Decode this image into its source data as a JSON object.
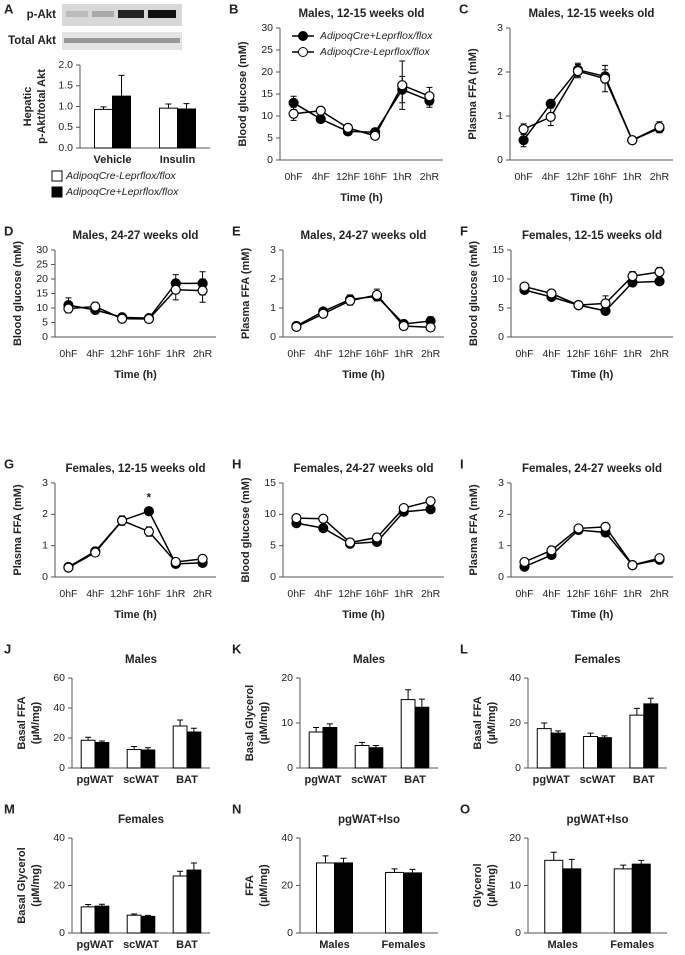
{
  "chart_data": [
    {
      "type": "bar",
      "panel": "A",
      "blot_labels": [
        "p-Akt",
        "Total Akt"
      ],
      "ylabel": [
        "Hepatic",
        "p-Akt/total Akt"
      ],
      "categories": [
        "Vehicle",
        "Insulin"
      ],
      "series": [
        {
          "name": "AdipoqCre-Leprflox/flox",
          "color": "#ffffff",
          "values": [
            0.93,
            0.96
          ],
          "errors": [
            0.06,
            0.1
          ]
        },
        {
          "name": "AdipoqCre+Leprflox/flox",
          "color": "#000000",
          "values": [
            1.25,
            0.94
          ],
          "errors": [
            0.5,
            0.13
          ]
        }
      ],
      "ylim": [
        0,
        2
      ],
      "yticks": [
        {
          "value": 0,
          "label": "0.0"
        },
        0.5,
        {
          "value": 1,
          "label": "1.0"
        },
        1.5,
        {
          "value": 2,
          "label": "2.0"
        }
      ]
    },
    {
      "type": "line",
      "panel": "B",
      "title": "Males, 12-15 weeks old",
      "xlabel": "Time (h)",
      "ylabel": [
        "Blood glucose (mM)"
      ],
      "categories": [
        "0hF",
        "4hF",
        "12hF",
        "16hF",
        "1hR",
        "2hR"
      ],
      "series": [
        {
          "name": "AdipoqCre+Leprflox/flox",
          "color": "#000000",
          "values": [
            13,
            9.3,
            6.5,
            6.3,
            16,
            13.5
          ],
          "errors": [
            1.5,
            0.8,
            0.8,
            0.8,
            3,
            1.5
          ]
        },
        {
          "name": "AdipoqCre-Leprflox/flox",
          "color": "#ffffff",
          "values": [
            10.5,
            11.2,
            7.3,
            5.5,
            17,
            14.5
          ],
          "errors": [
            1.5,
            0.5,
            0.5,
            0.8,
            5.5,
            2
          ]
        }
      ],
      "ylim": [
        0,
        30
      ],
      "yticks": [
        0,
        5,
        10,
        15,
        20,
        25,
        30
      ]
    },
    {
      "type": "line",
      "panel": "C",
      "title": "Males, 12-15 weeks old",
      "xlabel": "Time (h)",
      "ylabel": [
        "Plasma FFA (mM)"
      ],
      "categories": [
        "0hF",
        "4hF",
        "12hF",
        "16hF",
        "1hR",
        "2hR"
      ],
      "series": [
        {
          "color": "#000000",
          "values": [
            0.45,
            1.28,
            2.05,
            1.9,
            0.45,
            0.72
          ],
          "errors": [
            0.15,
            0.07,
            0.15,
            0.15,
            0.05,
            0.1
          ]
        },
        {
          "color": "#ffffff",
          "values": [
            0.7,
            0.98,
            2.02,
            1.85,
            0.45,
            0.75
          ],
          "errors": [
            0.12,
            0.2,
            0.15,
            0.3,
            0.05,
            0.12
          ]
        }
      ],
      "ylim": [
        0,
        3
      ],
      "yticks": [
        0,
        1,
        2,
        3
      ]
    },
    {
      "type": "line",
      "panel": "D",
      "title": "Males, 24-27 weeks old",
      "xlabel": "Time (h)",
      "ylabel": [
        "Blood glucose (mM)"
      ],
      "categories": [
        "0hF",
        "4hF",
        "12hF",
        "16hF",
        "1hR",
        "2hR"
      ],
      "series": [
        {
          "color": "#000000",
          "values": [
            11,
            9.3,
            6.8,
            6.5,
            18.5,
            18.5
          ],
          "errors": [
            2.5,
            1.2,
            1,
            0.8,
            3,
            4
          ]
        },
        {
          "color": "#ffffff",
          "values": [
            9.8,
            10.5,
            6.3,
            6.2,
            16.3,
            16
          ],
          "errors": [
            1.5,
            1.5,
            1,
            0.8,
            3.5,
            4
          ]
        }
      ],
      "ylim": [
        0,
        30
      ],
      "yticks": [
        0,
        5,
        10,
        15,
        20,
        25,
        30
      ]
    },
    {
      "type": "line",
      "panel": "E",
      "title": "Males, 24-27 weeks old",
      "xlabel": "Time (h)",
      "ylabel": [
        "Plasma FFA (mM)"
      ],
      "categories": [
        "0hF",
        "4hF",
        "12hF",
        "16hF",
        "1hR",
        "2hR"
      ],
      "series": [
        {
          "color": "#000000",
          "values": [
            0.38,
            0.88,
            1.3,
            1.4,
            0.45,
            0.55
          ],
          "errors": [
            0.05,
            0.08,
            0.15,
            0.15,
            0.1,
            0.15
          ]
        },
        {
          "color": "#ffffff",
          "values": [
            0.35,
            0.8,
            1.25,
            1.45,
            0.38,
            0.33
          ],
          "errors": [
            0.05,
            0.08,
            0.15,
            0.2,
            0.1,
            0.1
          ]
        }
      ],
      "ylim": [
        0,
        3
      ],
      "yticks": [
        0,
        1,
        2,
        3
      ]
    },
    {
      "type": "line",
      "panel": "F",
      "title": "Females, 12-15 weeks old",
      "xlabel": "Time (h)",
      "ylabel": [
        "Blood glucose (mM)"
      ],
      "categories": [
        "0hF",
        "4hF",
        "12hF",
        "16hF",
        "1hR",
        "2hR"
      ],
      "series": [
        {
          "color": "#000000",
          "values": [
            8.1,
            6.9,
            5.5,
            4.5,
            9.4,
            9.6
          ],
          "errors": [
            0.4,
            0.4,
            0.4,
            0.6,
            0.4,
            0.4
          ]
        },
        {
          "color": "#ffffff",
          "values": [
            8.7,
            7.5,
            5.5,
            5.8,
            10.5,
            11.2
          ],
          "errors": [
            0.4,
            0.5,
            0.4,
            1.3,
            0.8,
            0.8
          ]
        }
      ],
      "ylim": [
        0,
        15
      ],
      "yticks": [
        0,
        5,
        10,
        15
      ]
    },
    {
      "type": "line",
      "panel": "G",
      "title": "Females, 12-15 weeks old",
      "xlabel": "Time (h)",
      "ylabel": [
        "Plasma FFA (mM)"
      ],
      "categories": [
        "0hF",
        "4hF",
        "12hF",
        "16hF",
        "1hR",
        "2hR"
      ],
      "series": [
        {
          "color": "#000000",
          "values": [
            0.32,
            0.82,
            1.8,
            2.1,
            0.42,
            0.45
          ],
          "errors": [
            0.05,
            0.05,
            0.15,
            0.12,
            0.05,
            0.05
          ]
        },
        {
          "color": "#ffffff",
          "values": [
            0.3,
            0.78,
            1.8,
            1.45,
            0.48,
            0.58
          ],
          "errors": [
            0.05,
            0.05,
            0.1,
            0.15,
            0.05,
            0.1
          ]
        }
      ],
      "annotation": "*",
      "annotation_x": "16hF",
      "ylim": [
        0,
        3
      ],
      "yticks": [
        0,
        1,
        2,
        3
      ]
    },
    {
      "type": "line",
      "panel": "H",
      "title": "Females, 24-27 weeks old",
      "xlabel": "Time (h)",
      "ylabel": [
        "Blood glucose (mM)"
      ],
      "categories": [
        "0hF",
        "4hF",
        "12hF",
        "16hF",
        "1hR",
        "2hR"
      ],
      "series": [
        {
          "color": "#000000",
          "values": [
            8.6,
            7.8,
            5.3,
            5.6,
            10.4,
            10.8
          ],
          "errors": [
            0.4,
            0.4,
            0.3,
            0.4,
            0.3,
            0.5
          ]
        },
        {
          "color": "#ffffff",
          "values": [
            9.4,
            9.3,
            5.5,
            6.3,
            11,
            12.1
          ],
          "errors": [
            0.4,
            0.3,
            0.3,
            0.6,
            0.4,
            0.3
          ]
        }
      ],
      "ylim": [
        0,
        15
      ],
      "yticks": [
        0,
        5,
        10,
        15
      ]
    },
    {
      "type": "line",
      "panel": "I",
      "title": "Females, 24-27 weeks old",
      "xlabel": "Time (h)",
      "ylabel": [
        "Plasma FFA (mM)"
      ],
      "categories": [
        "0hF",
        "4hF",
        "12hF",
        "16hF",
        "1hR",
        "2hR"
      ],
      "series": [
        {
          "color": "#000000",
          "values": [
            0.33,
            0.7,
            1.5,
            1.42,
            0.38,
            0.55
          ],
          "errors": [
            0.05,
            0.05,
            0.1,
            0.12,
            0.05,
            0.05
          ]
        },
        {
          "color": "#ffffff",
          "values": [
            0.48,
            0.85,
            1.55,
            1.6,
            0.38,
            0.6
          ],
          "errors": [
            0.05,
            0.05,
            0.1,
            0.12,
            0.05,
            0.05
          ]
        }
      ],
      "ylim": [
        0,
        3
      ],
      "yticks": [
        0,
        1,
        2,
        3
      ]
    },
    {
      "type": "bar",
      "panel": "J",
      "title": "Males",
      "ylabel": [
        "Basal FFA",
        "(µM/mg)"
      ],
      "categories": [
        "pgWAT",
        "scWAT",
        "BAT"
      ],
      "series": [
        {
          "color": "#ffffff",
          "values": [
            18.5,
            12.3,
            28
          ],
          "errors": [
            2,
            2,
            4
          ]
        },
        {
          "color": "#000000",
          "values": [
            17,
            12,
            24
          ],
          "errors": [
            1,
            1.5,
            2.5
          ]
        }
      ],
      "ylim": [
        0,
        60
      ],
      "yticks": [
        0,
        20,
        40,
        60
      ]
    },
    {
      "type": "bar",
      "panel": "K",
      "title": "Males",
      "ylabel": [
        "Basal Glycerol",
        "(µM/mg)"
      ],
      "categories": [
        "pgWAT",
        "scWAT",
        "BAT"
      ],
      "series": [
        {
          "color": "#ffffff",
          "values": [
            8,
            5,
            15.2
          ],
          "errors": [
            1,
            0.7,
            2.2
          ]
        },
        {
          "color": "#000000",
          "values": [
            9,
            4.5,
            13.5
          ],
          "errors": [
            0.8,
            0.5,
            1.8
          ]
        }
      ],
      "ylim": [
        0,
        20
      ],
      "yticks": [
        0,
        10,
        20
      ]
    },
    {
      "type": "bar",
      "panel": "L",
      "title": "Females",
      "ylabel": [
        "Basal FFA",
        "(µM/mg)"
      ],
      "categories": [
        "pgWAT",
        "scWAT",
        "BAT"
      ],
      "series": [
        {
          "color": "#ffffff",
          "values": [
            17.5,
            14,
            23.5
          ],
          "errors": [
            2.5,
            1.5,
            3
          ]
        },
        {
          "color": "#000000",
          "values": [
            15.5,
            13.5,
            28.5
          ],
          "errors": [
            1,
            0.8,
            2.5
          ]
        }
      ],
      "ylim": [
        0,
        40
      ],
      "yticks": [
        0,
        20,
        40
      ]
    },
    {
      "type": "bar",
      "panel": "M",
      "title": "Females",
      "ylabel": [
        "Basal Glycerol",
        "(µM/mg)"
      ],
      "categories": [
        "pgWAT",
        "scWAT",
        "BAT"
      ],
      "series": [
        {
          "color": "#ffffff",
          "values": [
            11,
            7.5,
            24
          ],
          "errors": [
            1,
            0.5,
            2
          ]
        },
        {
          "color": "#000000",
          "values": [
            11.3,
            7,
            26.5
          ],
          "errors": [
            0.8,
            0.4,
            3
          ]
        }
      ],
      "ylim": [
        0,
        40
      ],
      "yticks": [
        0,
        20,
        40
      ]
    },
    {
      "type": "bar",
      "panel": "N",
      "title": "pgWAT+Iso",
      "ylabel": [
        "FFA",
        "(µM/mg)"
      ],
      "categories": [
        "Males",
        "Females"
      ],
      "series": [
        {
          "color": "#ffffff",
          "values": [
            29.5,
            25.5
          ],
          "errors": [
            3,
            1.5
          ]
        },
        {
          "color": "#000000",
          "values": [
            29.5,
            25.3
          ],
          "errors": [
            2,
            1.5
          ]
        }
      ],
      "ylim": [
        0,
        40
      ],
      "yticks": [
        0,
        20,
        40
      ]
    },
    {
      "type": "bar",
      "panel": "O",
      "title": "pgWAT+Iso",
      "ylabel": [
        "Glycerol",
        "(µM/mg)"
      ],
      "categories": [
        "Males",
        "Females"
      ],
      "series": [
        {
          "color": "#ffffff",
          "values": [
            15.3,
            13.5
          ],
          "errors": [
            1.7,
            0.8
          ]
        },
        {
          "color": "#000000",
          "values": [
            13.5,
            14.5
          ],
          "errors": [
            2,
            0.8
          ]
        }
      ],
      "ylim": [
        0,
        20
      ],
      "yticks": [
        0,
        10,
        20
      ]
    }
  ]
}
